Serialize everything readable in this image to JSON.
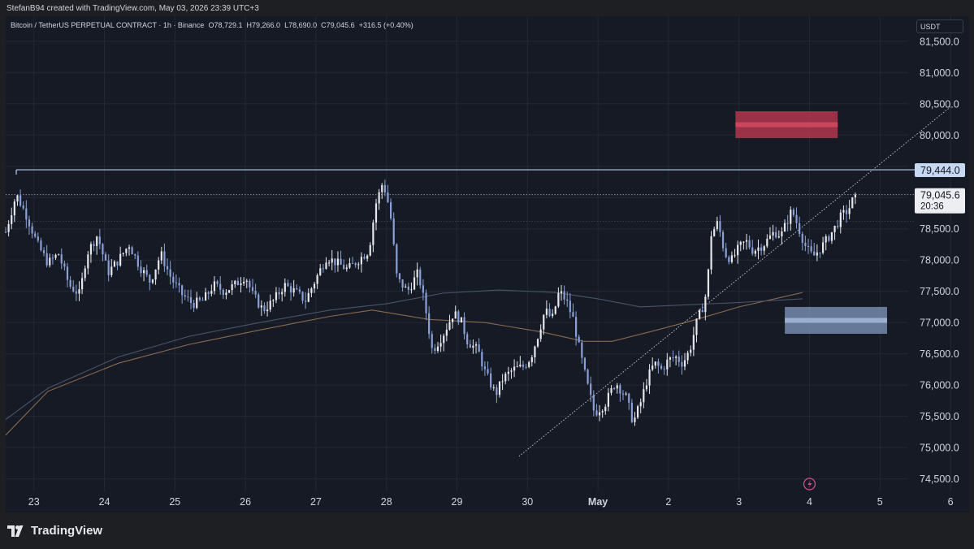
{
  "header": {
    "created_by": "StefanB94 created with TradingView.com, May 03, 2026 23:39 UTC+3"
  },
  "symbol": {
    "name": "Bitcoin / TetherUS PERPETUAL CONTRACT · 1h · Binance",
    "open": "O78,729.1",
    "high": "H79,266.0",
    "low": "L78,690.0",
    "close": "C79,045.6",
    "change": "+316.5 (+0.40%)"
  },
  "currency_button": "USDT",
  "chart_data": {
    "type": "candlestick",
    "x_ticks": [
      "23",
      "24",
      "25",
      "26",
      "27",
      "28",
      "29",
      "30",
      "May",
      "2",
      "3",
      "4",
      "5",
      "6"
    ],
    "y_ticks": [
      "81,500.0",
      "81,000.0",
      "80,500.0",
      "80,000.0",
      "78,500.0",
      "78,000.0",
      "77,500.0",
      "77,000.0",
      "76,500.0",
      "76,000.0",
      "75,500.0",
      "75,000.0",
      "74,500.0"
    ],
    "y_tick_values": [
      81500,
      81000,
      80500,
      80000,
      78500,
      78000,
      77500,
      77000,
      76500,
      76000,
      75500,
      75000,
      74500
    ],
    "ylim": [
      74300,
      81900
    ],
    "xlim": [
      22.6,
      35.4
    ],
    "last_price": {
      "label": "79,045.6",
      "value": 79045.6,
      "countdown": "20:36"
    },
    "horizontal_level": {
      "label": "79,444.0",
      "value": 79444.0
    },
    "supply_zone": {
      "x_start": 32.95,
      "x_end": 34.4,
      "y_low": 79950,
      "y_high": 80380,
      "color": "#c53b51"
    },
    "demand_zone": {
      "x_start": 33.65,
      "x_end": 35.1,
      "y_low": 76820,
      "y_high": 77250,
      "color": "#8aa3c9"
    },
    "trendline": {
      "x_start": 29.88,
      "y_start": 74860,
      "x_end": 36.0,
      "y_end": 80450
    },
    "moving_averages": [
      {
        "color": "#8a6a50",
        "points": [
          [
            22.6,
            75200
          ],
          [
            23.2,
            75900
          ],
          [
            24.2,
            76350
          ],
          [
            25.2,
            76650
          ],
          [
            26.2,
            76880
          ],
          [
            27.2,
            77100
          ],
          [
            27.8,
            77200
          ],
          [
            28.6,
            77050
          ],
          [
            29.4,
            77000
          ],
          [
            30.2,
            76850
          ],
          [
            30.8,
            76700
          ],
          [
            31.2,
            76700
          ],
          [
            31.8,
            76870
          ],
          [
            32.4,
            77050
          ],
          [
            33.0,
            77250
          ],
          [
            33.9,
            77480
          ]
        ]
      },
      {
        "color": "#4a5468",
        "points": [
          [
            22.6,
            75450
          ],
          [
            23.2,
            75950
          ],
          [
            24.2,
            76450
          ],
          [
            25.2,
            76780
          ],
          [
            26.2,
            77000
          ],
          [
            27.2,
            77200
          ],
          [
            28.0,
            77300
          ],
          [
            28.8,
            77470
          ],
          [
            29.6,
            77520
          ],
          [
            30.4,
            77480
          ],
          [
            31.0,
            77380
          ],
          [
            31.6,
            77250
          ],
          [
            32.2,
            77280
          ],
          [
            33.0,
            77320
          ],
          [
            33.9,
            77380
          ]
        ]
      }
    ],
    "price_path": [
      [
        22.6,
        78450
      ],
      [
        22.75,
        79050
      ],
      [
        22.9,
        78700
      ],
      [
        23.05,
        78250
      ],
      [
        23.2,
        77950
      ],
      [
        23.35,
        78100
      ],
      [
        23.5,
        77600
      ],
      [
        23.65,
        77450
      ],
      [
        23.75,
        78100
      ],
      [
        23.9,
        78400
      ],
      [
        24.05,
        77800
      ],
      [
        24.2,
        78000
      ],
      [
        24.35,
        78250
      ],
      [
        24.5,
        77900
      ],
      [
        24.65,
        77650
      ],
      [
        24.8,
        78100
      ],
      [
        24.95,
        77700
      ],
      [
        25.1,
        77450
      ],
      [
        25.25,
        77300
      ],
      [
        25.4,
        77350
      ],
      [
        25.55,
        77600
      ],
      [
        25.7,
        77500
      ],
      [
        25.85,
        77600
      ],
      [
        26.0,
        77750
      ],
      [
        26.1,
        77450
      ],
      [
        26.25,
        77200
      ],
      [
        26.4,
        77350
      ],
      [
        26.55,
        77600
      ],
      [
        26.7,
        77500
      ],
      [
        26.85,
        77350
      ],
      [
        27.0,
        77700
      ],
      [
        27.15,
        78050
      ],
      [
        27.3,
        77950
      ],
      [
        27.45,
        77850
      ],
      [
        27.6,
        78000
      ],
      [
        27.75,
        78150
      ],
      [
        27.85,
        78900
      ],
      [
        27.95,
        79250
      ],
      [
        28.05,
        78800
      ],
      [
        28.15,
        77700
      ],
      [
        28.3,
        77500
      ],
      [
        28.45,
        77800
      ],
      [
        28.55,
        77250
      ],
      [
        28.65,
        76550
      ],
      [
        28.8,
        76800
      ],
      [
        28.95,
        77150
      ],
      [
        29.05,
        77050
      ],
      [
        29.15,
        76700
      ],
      [
        29.3,
        76550
      ],
      [
        29.4,
        76200
      ],
      [
        29.55,
        75850
      ],
      [
        29.65,
        76100
      ],
      [
        29.8,
        76250
      ],
      [
        29.95,
        76300
      ],
      [
        30.05,
        76450
      ],
      [
        30.15,
        76800
      ],
      [
        30.25,
        77200
      ],
      [
        30.35,
        77050
      ],
      [
        30.45,
        77500
      ],
      [
        30.55,
        77350
      ],
      [
        30.65,
        77050
      ],
      [
        30.75,
        76500
      ],
      [
        30.85,
        76000
      ],
      [
        30.95,
        75550
      ],
      [
        31.1,
        75700
      ],
      [
        31.25,
        76050
      ],
      [
        31.4,
        75800
      ],
      [
        31.5,
        75400
      ],
      [
        31.6,
        75700
      ],
      [
        31.7,
        76100
      ],
      [
        31.8,
        76350
      ],
      [
        31.9,
        76250
      ],
      [
        32.0,
        76400
      ],
      [
        32.1,
        76450
      ],
      [
        32.2,
        76350
      ],
      [
        32.3,
        76550
      ],
      [
        32.4,
        77000
      ],
      [
        32.5,
        77300
      ],
      [
        32.55,
        77550
      ],
      [
        32.6,
        78400
      ],
      [
        32.7,
        78600
      ],
      [
        32.8,
        78100
      ],
      [
        32.9,
        78000
      ],
      [
        33.0,
        78200
      ],
      [
        33.1,
        78300
      ],
      [
        33.2,
        78150
      ],
      [
        33.35,
        78250
      ],
      [
        33.5,
        78450
      ],
      [
        33.6,
        78400
      ],
      [
        33.75,
        78800
      ],
      [
        33.85,
        78500
      ],
      [
        33.95,
        78200
      ],
      [
        34.05,
        78050
      ],
      [
        34.2,
        78250
      ],
      [
        34.35,
        78500
      ],
      [
        34.45,
        78700
      ],
      [
        34.55,
        78800
      ],
      [
        34.65,
        79050
      ]
    ],
    "annotations": []
  },
  "footer": {
    "logo": "TradingView"
  },
  "colors": {
    "background": "#161a25",
    "up": "#e5e7eb",
    "down": "#8aa0d6",
    "grid": "#232836",
    "axis_text": "#d1d4dc"
  }
}
